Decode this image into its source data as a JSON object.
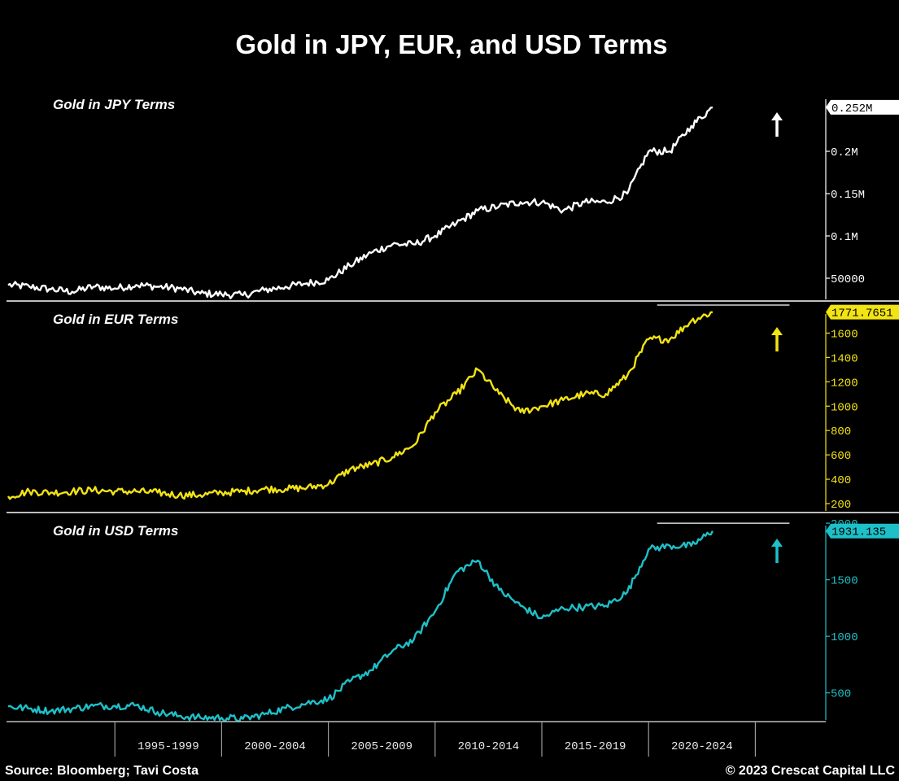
{
  "chart_data": {
    "type": "line",
    "title": "Gold in JPY, EUR, and USD Terms",
    "x_categories": [
      "1995-1999",
      "2000-2004",
      "2005-2009",
      "2010-2014",
      "2015-2019",
      "2020-2024"
    ],
    "source": "Source: Bloomberg; Tavi Costa",
    "copyright": "© 2023 Crescat Capital LLC",
    "panels": [
      {
        "label": "Gold in JPY Terms",
        "color": "#ffffff",
        "badge_text_color": "#000000",
        "last_value_label": "0.252M",
        "ylim": [
          25000,
          275000
        ],
        "yticks": [
          {
            "v": 50000,
            "label": "50000"
          },
          {
            "v": 100000,
            "label": "0.1M"
          },
          {
            "v": 150000,
            "label": "0.15M"
          },
          {
            "v": 200000,
            "label": "0.2M"
          }
        ],
        "points": [
          [
            1990,
            42000
          ],
          [
            1991,
            40000
          ],
          [
            1992,
            37000
          ],
          [
            1993,
            34000
          ],
          [
            1994,
            40000
          ],
          [
            1995,
            38000
          ],
          [
            1996,
            42000
          ],
          [
            1997,
            40000
          ],
          [
            1998,
            38000
          ],
          [
            1999,
            32000
          ],
          [
            2000,
            31000
          ],
          [
            2001,
            30000
          ],
          [
            2002,
            36000
          ],
          [
            2003,
            40000
          ],
          [
            2004,
            44000
          ],
          [
            2005,
            48000
          ],
          [
            2006,
            65000
          ],
          [
            2007,
            80000
          ],
          [
            2008,
            90000
          ],
          [
            2009,
            90000
          ],
          [
            2010,
            100000
          ],
          [
            2011,
            115000
          ],
          [
            2012,
            130000
          ],
          [
            2013,
            135000
          ],
          [
            2014,
            140000
          ],
          [
            2015,
            140000
          ],
          [
            2016,
            130000
          ],
          [
            2017,
            140000
          ],
          [
            2018,
            140000
          ],
          [
            2019,
            150000
          ],
          [
            2020,
            200000
          ],
          [
            2021,
            200000
          ],
          [
            2022,
            230000
          ],
          [
            2023,
            252000
          ]
        ]
      },
      {
        "label": "Gold in EUR Terms",
        "color": "#f2e313",
        "badge_text_color": "#000000",
        "last_value_label": "1771.7651",
        "ylim": [
          140,
          1850
        ],
        "yticks": [
          {
            "v": 200,
            "label": "200"
          },
          {
            "v": 400,
            "label": "400"
          },
          {
            "v": 600,
            "label": "600"
          },
          {
            "v": 800,
            "label": "800"
          },
          {
            "v": 1000,
            "label": "1000"
          },
          {
            "v": 1200,
            "label": "1200"
          },
          {
            "v": 1400,
            "label": "1400"
          },
          {
            "v": 1600,
            "label": "1600"
          }
        ],
        "points": [
          [
            1990,
            260
          ],
          [
            1991,
            300
          ],
          [
            1992,
            290
          ],
          [
            1993,
            300
          ],
          [
            1994,
            310
          ],
          [
            1995,
            300
          ],
          [
            1996,
            300
          ],
          [
            1997,
            290
          ],
          [
            1998,
            270
          ],
          [
            1999,
            270
          ],
          [
            2000,
            290
          ],
          [
            2001,
            300
          ],
          [
            2002,
            320
          ],
          [
            2003,
            320
          ],
          [
            2004,
            330
          ],
          [
            2005,
            360
          ],
          [
            2006,
            480
          ],
          [
            2007,
            520
          ],
          [
            2008,
            580
          ],
          [
            2009,
            680
          ],
          [
            2010,
            950
          ],
          [
            2011,
            1100
          ],
          [
            2012,
            1300
          ],
          [
            2013,
            1100
          ],
          [
            2014,
            950
          ],
          [
            2015,
            1000
          ],
          [
            2016,
            1050
          ],
          [
            2017,
            1100
          ],
          [
            2018,
            1100
          ],
          [
            2019,
            1250
          ],
          [
            2020,
            1550
          ],
          [
            2021,
            1550
          ],
          [
            2022,
            1700
          ],
          [
            2023,
            1772
          ]
        ],
        "peak_line_value": 1830
      },
      {
        "label": "Gold in USD Terms",
        "color": "#1ec0c8",
        "badge_text_color": "#000000",
        "last_value_label": "1931.135",
        "ylim": [
          260,
          2080
        ],
        "yticks": [
          {
            "v": 500,
            "label": "500"
          },
          {
            "v": 1000,
            "label": "1000"
          },
          {
            "v": 1500,
            "label": "1500"
          },
          {
            "v": 2000,
            "label": "2000"
          }
        ],
        "points": [
          [
            1990,
            380
          ],
          [
            1991,
            360
          ],
          [
            1992,
            340
          ],
          [
            1993,
            360
          ],
          [
            1994,
            385
          ],
          [
            1995,
            385
          ],
          [
            1996,
            390
          ],
          [
            1997,
            330
          ],
          [
            1998,
            295
          ],
          [
            1999,
            280
          ],
          [
            2000,
            280
          ],
          [
            2001,
            270
          ],
          [
            2002,
            310
          ],
          [
            2003,
            365
          ],
          [
            2004,
            410
          ],
          [
            2005,
            445
          ],
          [
            2006,
            600
          ],
          [
            2007,
            700
          ],
          [
            2008,
            870
          ],
          [
            2009,
            970
          ],
          [
            2010,
            1220
          ],
          [
            2011,
            1570
          ],
          [
            2012,
            1670
          ],
          [
            2013,
            1410
          ],
          [
            2014,
            1270
          ],
          [
            2015,
            1160
          ],
          [
            2016,
            1250
          ],
          [
            2017,
            1260
          ],
          [
            2018,
            1270
          ],
          [
            2019,
            1390
          ],
          [
            2020,
            1770
          ],
          [
            2021,
            1800
          ],
          [
            2022,
            1800
          ],
          [
            2023,
            1931
          ]
        ],
        "peak_line_value": 2000
      }
    ]
  }
}
